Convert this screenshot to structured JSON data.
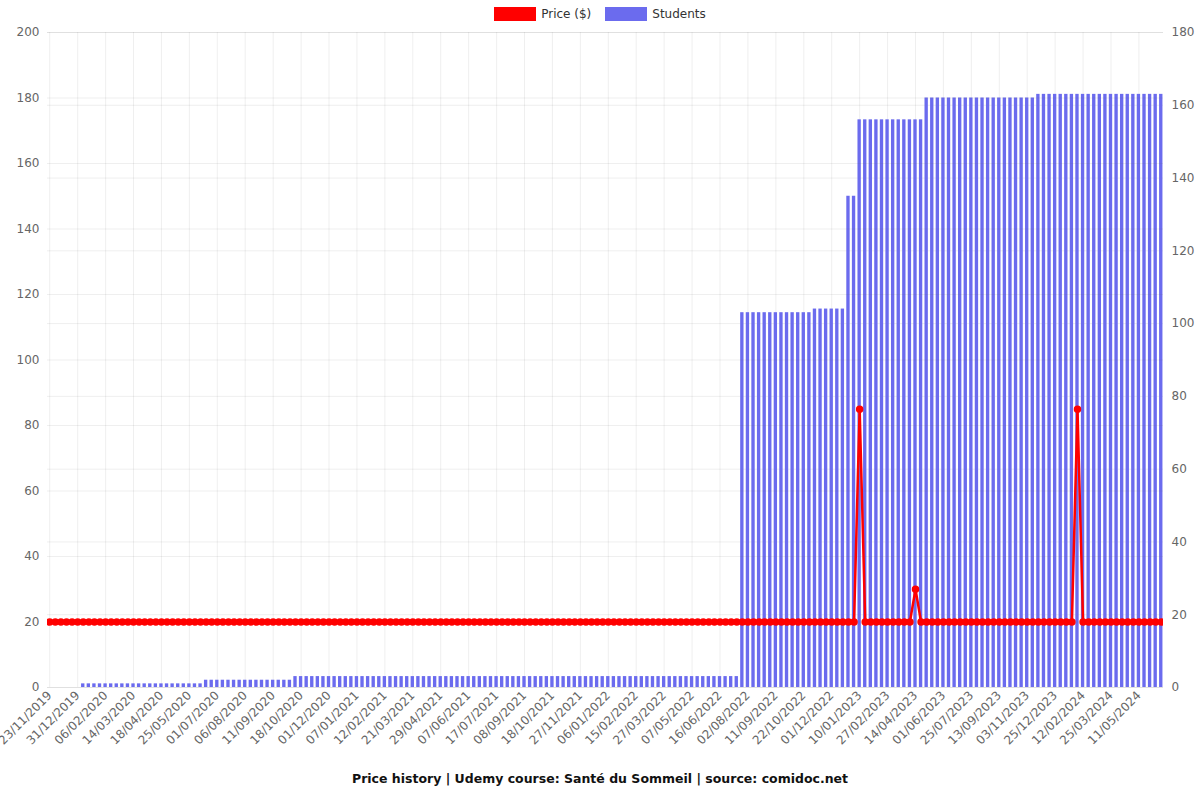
{
  "chart_data": {
    "type": "bar",
    "title": "Price history | Udemy course: Santé du Sommeil | source: comidoc.net",
    "legend": "top",
    "grid": true,
    "categories": [
      "23/11/2019",
      null,
      null,
      null,
      null,
      "31/12/2019",
      null,
      null,
      null,
      null,
      "06/02/2020",
      null,
      null,
      null,
      null,
      "14/03/2020",
      null,
      null,
      null,
      null,
      "18/04/2020",
      null,
      null,
      null,
      null,
      "25/05/2020",
      null,
      null,
      null,
      null,
      "01/07/2020",
      null,
      null,
      null,
      null,
      "06/08/2020",
      null,
      null,
      null,
      null,
      "11/09/2020",
      null,
      null,
      null,
      null,
      "18/10/2020",
      null,
      null,
      null,
      null,
      "01/12/2020",
      null,
      null,
      null,
      null,
      "07/01/2021",
      null,
      null,
      null,
      null,
      "12/02/2021",
      null,
      null,
      null,
      null,
      "21/03/2021",
      null,
      null,
      null,
      null,
      "29/04/2021",
      null,
      null,
      null,
      null,
      "07/06/2021",
      null,
      null,
      null,
      null,
      "17/07/2021",
      null,
      null,
      null,
      null,
      "08/09/2021",
      null,
      null,
      null,
      null,
      "18/10/2021",
      null,
      null,
      null,
      null,
      "27/11/2021",
      null,
      null,
      null,
      null,
      "06/01/2022",
      null,
      null,
      null,
      null,
      "15/02/2022",
      null,
      null,
      null,
      null,
      "27/03/2022",
      null,
      null,
      null,
      null,
      "07/05/2022",
      null,
      null,
      null,
      null,
      "16/06/2022",
      null,
      null,
      null,
      null,
      "02/08/2022",
      null,
      null,
      null,
      null,
      "11/09/2022",
      null,
      null,
      null,
      null,
      "22/10/2022",
      null,
      null,
      null,
      null,
      "01/12/2022",
      null,
      null,
      null,
      null,
      "10/01/2023",
      null,
      null,
      null,
      null,
      "27/02/2023",
      null,
      null,
      null,
      null,
      "14/04/2023",
      null,
      null,
      null,
      null,
      "01/06/2023",
      null,
      null,
      null,
      null,
      "25/07/2023",
      null,
      null,
      null,
      null,
      "13/09/2023",
      null,
      null,
      null,
      null,
      "03/11/2023",
      null,
      null,
      null,
      null,
      "25/12/2023",
      null,
      null,
      null,
      null,
      "12/02/2024",
      null,
      null,
      null,
      null,
      "25/03/2024",
      null,
      null,
      null,
      null,
      "11/05/2024",
      null,
      null,
      null,
      null
    ],
    "ylim": [
      0,
      200
    ],
    "yticks": [
      0,
      20,
      40,
      60,
      80,
      100,
      120,
      140,
      160,
      180,
      200
    ],
    "y2lim": [
      0,
      180
    ],
    "y2ticks": [
      0,
      20,
      40,
      60,
      80,
      100,
      120,
      140,
      160,
      180
    ],
    "series": [
      {
        "name": "Price ($)",
        "color": "#ff0000",
        "type": "line",
        "marker": "circle",
        "values": [
          20,
          20,
          20,
          20,
          20,
          20,
          20,
          20,
          20,
          20,
          20,
          20,
          20,
          20,
          20,
          20,
          20,
          20,
          20,
          20,
          20,
          20,
          20,
          20,
          20,
          20,
          20,
          20,
          20,
          20,
          20,
          20,
          20,
          20,
          20,
          20,
          20,
          20,
          20,
          20,
          20,
          20,
          20,
          20,
          20,
          20,
          20,
          20,
          20,
          20,
          20,
          20,
          20,
          20,
          20,
          20,
          20,
          20,
          20,
          20,
          20,
          20,
          20,
          20,
          20,
          20,
          20,
          20,
          20,
          20,
          20,
          20,
          20,
          20,
          20,
          20,
          20,
          20,
          20,
          20,
          20,
          20,
          20,
          20,
          20,
          20,
          20,
          20,
          20,
          20,
          20,
          20,
          20,
          20,
          20,
          20,
          20,
          20,
          20,
          20,
          20,
          20,
          20,
          20,
          20,
          20,
          20,
          20,
          20,
          20,
          20,
          20,
          20,
          20,
          20,
          20,
          20,
          20,
          20,
          20,
          20,
          20,
          20,
          20,
          20,
          20,
          20,
          20,
          20,
          20,
          20,
          20,
          20,
          20,
          20,
          20,
          20,
          20,
          20,
          20,
          20,
          20,
          20,
          20,
          20,
          85,
          20,
          20,
          20,
          20,
          20,
          20,
          20,
          20,
          20,
          30,
          20,
          20,
          20,
          20,
          20,
          20,
          20,
          20,
          20,
          20,
          20,
          20,
          20,
          20,
          20,
          20,
          20,
          20,
          20,
          20,
          20,
          20,
          20,
          20,
          20,
          20,
          20,
          20,
          85,
          20,
          20,
          20,
          20,
          20,
          20,
          20,
          20,
          20,
          20,
          20,
          20,
          20,
          20,
          20
        ]
      },
      {
        "name": "Students",
        "color": "#6b6bee",
        "type": "bar",
        "axis": "y2",
        "values": [
          0,
          0,
          0,
          0,
          0,
          0,
          1,
          1,
          1,
          1,
          1,
          1,
          1,
          1,
          1,
          1,
          1,
          1,
          1,
          1,
          1,
          1,
          1,
          1,
          1,
          1,
          1,
          1,
          2,
          2,
          2,
          2,
          2,
          2,
          2,
          2,
          2,
          2,
          2,
          2,
          2,
          2,
          2,
          2,
          3,
          3,
          3,
          3,
          3,
          3,
          3,
          3,
          3,
          3,
          3,
          3,
          3,
          3,
          3,
          3,
          3,
          3,
          3,
          3,
          3,
          3,
          3,
          3,
          3,
          3,
          3,
          3,
          3,
          3,
          3,
          3,
          3,
          3,
          3,
          3,
          3,
          3,
          3,
          3,
          3,
          3,
          3,
          3,
          3,
          3,
          3,
          3,
          3,
          3,
          3,
          3,
          3,
          3,
          3,
          3,
          3,
          3,
          3,
          3,
          3,
          3,
          3,
          3,
          3,
          3,
          3,
          3,
          3,
          3,
          3,
          3,
          3,
          3,
          3,
          3,
          3,
          3,
          3,
          3,
          103,
          103,
          103,
          103,
          103,
          103,
          103,
          103,
          103,
          103,
          103,
          103,
          103,
          104,
          104,
          104,
          104,
          104,
          104,
          135,
          135,
          156,
          156,
          156,
          156,
          156,
          156,
          156,
          156,
          156,
          156,
          156,
          156,
          162,
          162,
          162,
          162,
          162,
          162,
          162,
          162,
          162,
          162,
          162,
          162,
          162,
          162,
          162,
          162,
          162,
          162,
          162,
          162,
          163,
          163,
          163,
          163,
          163,
          163,
          163,
          163,
          163,
          163,
          163,
          163,
          163,
          163,
          163,
          163,
          163,
          163,
          163,
          163,
          163,
          163,
          163
        ]
      }
    ]
  }
}
